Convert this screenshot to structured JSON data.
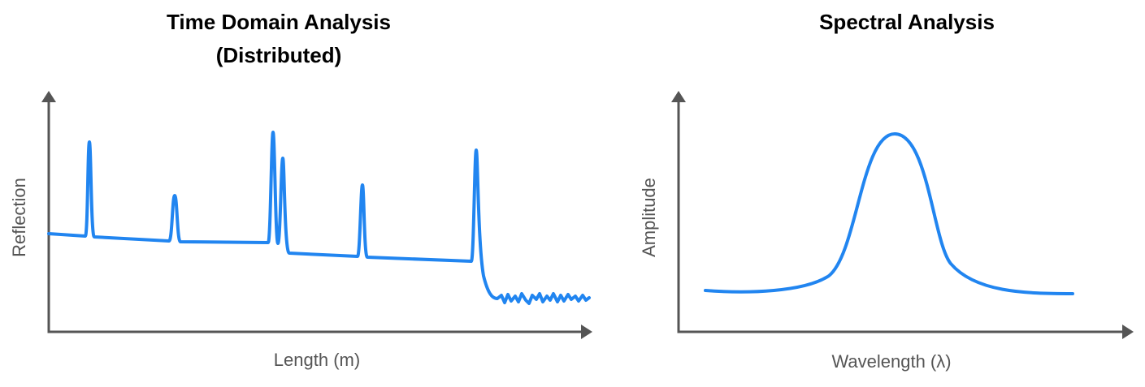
{
  "panels": [
    {
      "title_lines": [
        "Time Domain Analysis",
        "(Distributed)"
      ],
      "y_label": "Reflection",
      "x_label": "Length (m)"
    },
    {
      "title_lines": [
        "Spectral Analysis"
      ],
      "y_label": "Amplitude",
      "x_label": "Wavelength (λ)"
    }
  ]
}
